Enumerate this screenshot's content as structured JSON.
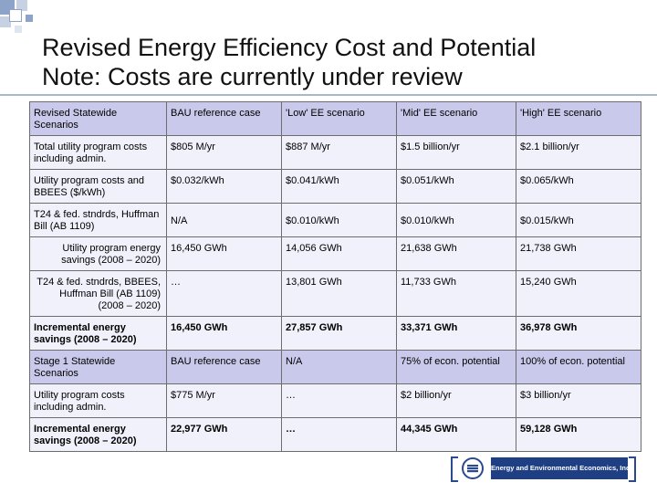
{
  "slide": {
    "title_line1": "Revised Energy Efficiency Cost and Potential",
    "title_line2": "Note: Costs are currently under review"
  },
  "table": {
    "rows": [
      [
        "Revised Statewide Scenarios",
        "BAU reference case",
        "'Low' EE scenario",
        "'Mid' EE scenario",
        "'High' EE scenario"
      ],
      [
        "Total utility program costs including admin.",
        "$805 M/yr",
        "$887 M/yr",
        "$1.5 billion/yr",
        "$2.1 billion/yr"
      ],
      [
        "Utility program costs and BBEES ($/kWh)",
        "$0.032/kWh",
        "$0.041/kWh",
        "$0.051/kWh",
        "$0.065/kWh"
      ],
      [
        "T24 & fed. stndrds, Huffman Bill (AB 1109)",
        "N/A",
        "$0.010/kWh",
        "$0.010/kWh",
        "$0.015/kWh"
      ],
      [
        "Utility program energy savings (2008 – 2020)",
        "16,450 GWh",
        "14,056 GWh",
        "21,638 GWh",
        "21,738 GWh"
      ],
      [
        "T24 & fed. stndrds, BBEES, Huffman Bill (AB 1109) (2008 – 2020)",
        "…",
        "13,801 GWh",
        "11,733 GWh",
        "15,240 GWh"
      ],
      [
        "Incremental energy savings (2008 – 2020)",
        "16,450 GWh",
        "27,857 GWh",
        "33,371 GWh",
        "36,978 GWh"
      ],
      [
        "Stage 1 Statewide Scenarios",
        "BAU reference case",
        "N/A",
        "75% of econ. potential",
        "100% of econ. potential"
      ],
      [
        "Utility program costs including admin.",
        "$775 M/yr",
        "…",
        "$2 billion/yr",
        "$3 billion/yr"
      ],
      [
        "Incremental energy savings (2008 – 2020)",
        "22,977 GWh",
        "…",
        "44,345 GWh",
        "59,128 GWh"
      ]
    ]
  },
  "logo": {
    "text": "Energy and Environmental Economics, Inc."
  },
  "colors": {
    "header_fill": "#c9c9eb",
    "light_fill": "#f1f1fb",
    "title_rule": "#aab7cc",
    "logo_blue": "#1f3f85"
  }
}
